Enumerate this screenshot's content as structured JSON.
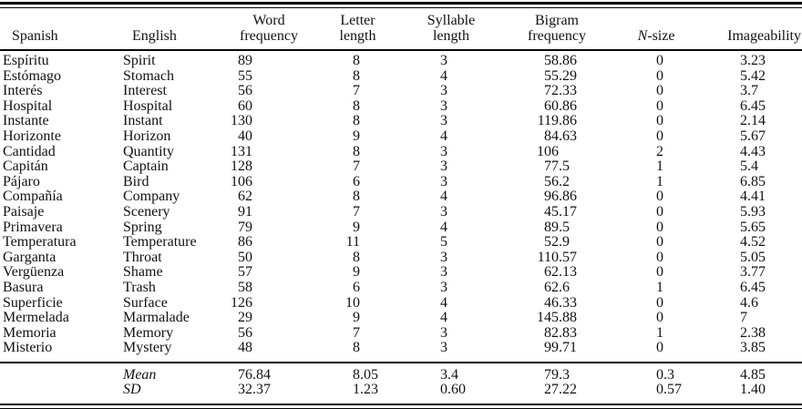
{
  "table": {
    "columns": [
      {
        "key": "spanish",
        "label": "Spanish"
      },
      {
        "key": "english",
        "label": "English"
      },
      {
        "key": "word_frequency",
        "label": "Word\nfrequency"
      },
      {
        "key": "letter_length",
        "label": "Letter\nlength"
      },
      {
        "key": "syllable_length",
        "label": "Syllable\nlength"
      },
      {
        "key": "bigram_frequency",
        "label": "Bigram\nfrequency"
      },
      {
        "key": "n_size",
        "label_italic": "N",
        "label_rest": "-size"
      },
      {
        "key": "imageability",
        "label": "Imageability"
      }
    ],
    "rows": [
      {
        "spanish": "Espíritu",
        "english": "Spirit",
        "word_frequency": "89",
        "letter_length": "8",
        "syllable_length": "3",
        "bigram_frequency": "58.86",
        "n_size": "0",
        "imageability": "3.23"
      },
      {
        "spanish": "Estómago",
        "english": "Stomach",
        "word_frequency": "55",
        "letter_length": "8",
        "syllable_length": "4",
        "bigram_frequency": "55.29",
        "n_size": "0",
        "imageability": "5.42"
      },
      {
        "spanish": "Interés",
        "english": "Interest",
        "word_frequency": "56",
        "letter_length": "7",
        "syllable_length": "3",
        "bigram_frequency": "72.33",
        "n_size": "0",
        "imageability": "3.7"
      },
      {
        "spanish": "Hospital",
        "english": "Hospital",
        "word_frequency": "60",
        "letter_length": "8",
        "syllable_length": "3",
        "bigram_frequency": "60.86",
        "n_size": "0",
        "imageability": "6.45"
      },
      {
        "spanish": "Instante",
        "english": "Instant",
        "word_frequency": "130",
        "letter_length": "8",
        "syllable_length": "3",
        "bigram_frequency": "119.86",
        "n_size": "0",
        "imageability": "2.14"
      },
      {
        "spanish": "Horizonte",
        "english": "Horizon",
        "word_frequency": "40",
        "letter_length": "9",
        "syllable_length": "4",
        "bigram_frequency": "84.63",
        "n_size": "0",
        "imageability": "5.67"
      },
      {
        "spanish": "Cantidad",
        "english": "Quantity",
        "word_frequency": "131",
        "letter_length": "8",
        "syllable_length": "3",
        "bigram_frequency": "106",
        "n_size": "2",
        "imageability": "4.43"
      },
      {
        "spanish": "Capitán",
        "english": "Captain",
        "word_frequency": "128",
        "letter_length": "7",
        "syllable_length": "3",
        "bigram_frequency": "77.5",
        "n_size": "1",
        "imageability": "5.4"
      },
      {
        "spanish": "Pájaro",
        "english": "Bird",
        "word_frequency": "106",
        "letter_length": "6",
        "syllable_length": "3",
        "bigram_frequency": "56.2",
        "n_size": "1",
        "imageability": "6.85"
      },
      {
        "spanish": "Compañía",
        "english": "Company",
        "word_frequency": "62",
        "letter_length": "8",
        "syllable_length": "4",
        "bigram_frequency": "96.86",
        "n_size": "0",
        "imageability": "4.41"
      },
      {
        "spanish": "Paisaje",
        "english": "Scenery",
        "word_frequency": "91",
        "letter_length": "7",
        "syllable_length": "3",
        "bigram_frequency": "45.17",
        "n_size": "0",
        "imageability": "5.93"
      },
      {
        "spanish": "Primavera",
        "english": "Spring",
        "word_frequency": "79",
        "letter_length": "9",
        "syllable_length": "4",
        "bigram_frequency": "89.5",
        "n_size": "0",
        "imageability": "5.65"
      },
      {
        "spanish": "Temperatura",
        "english": "Temperature",
        "word_frequency": "86",
        "letter_length": "11",
        "syllable_length": "5",
        "bigram_frequency": "52.9",
        "n_size": "0",
        "imageability": "4.52"
      },
      {
        "spanish": "Garganta",
        "english": "Throat",
        "word_frequency": "50",
        "letter_length": "8",
        "syllable_length": "3",
        "bigram_frequency": "110.57",
        "n_size": "0",
        "imageability": "5.05"
      },
      {
        "spanish": "Vergüenza",
        "english": "Shame",
        "word_frequency": "57",
        "letter_length": "9",
        "syllable_length": "3",
        "bigram_frequency": "62.13",
        "n_size": "0",
        "imageability": "3.77"
      },
      {
        "spanish": "Basura",
        "english": "Trash",
        "word_frequency": "58",
        "letter_length": "6",
        "syllable_length": "3",
        "bigram_frequency": "62.6",
        "n_size": "1",
        "imageability": "6.45"
      },
      {
        "spanish": "Superficie",
        "english": "Surface",
        "word_frequency": "126",
        "letter_length": "10",
        "syllable_length": "4",
        "bigram_frequency": "46.33",
        "n_size": "0",
        "imageability": "4.6"
      },
      {
        "spanish": "Mermelada",
        "english": "Marmalade",
        "word_frequency": "29",
        "letter_length": "9",
        "syllable_length": "4",
        "bigram_frequency": "145.88",
        "n_size": "0",
        "imageability": "7"
      },
      {
        "spanish": "Memoria",
        "english": "Memory",
        "word_frequency": "56",
        "letter_length": "7",
        "syllable_length": "3",
        "bigram_frequency": "82.83",
        "n_size": "1",
        "imageability": "2.38"
      },
      {
        "spanish": "Misterio",
        "english": "Mystery",
        "word_frequency": "48",
        "letter_length": "8",
        "syllable_length": "3",
        "bigram_frequency": "99.71",
        "n_size": "0",
        "imageability": "3.85"
      }
    ],
    "summary": [
      {
        "label": "Mean",
        "word_frequency": "76.84",
        "letter_length": "8.05",
        "syllable_length": "3.4",
        "bigram_frequency": "79.3",
        "n_size": "0.3",
        "imageability": "4.85"
      },
      {
        "label": "SD",
        "word_frequency": "32.37",
        "letter_length": "1.23",
        "syllable_length": "0.60",
        "bigram_frequency": "27.22",
        "n_size": "0.57",
        "imageability": "1.40"
      }
    ]
  },
  "colors": {
    "text": "#111111",
    "rule": "#000000",
    "background": "#ffffff"
  }
}
